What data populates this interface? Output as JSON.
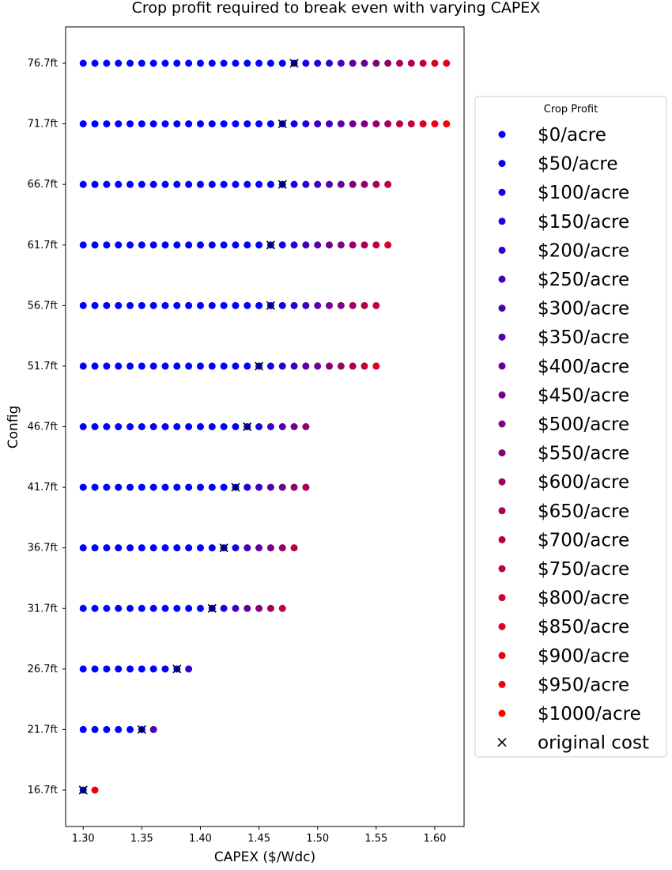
{
  "chart_data": {
    "type": "scatter",
    "title": "Crop profit required to break even with varying CAPEX",
    "xlabel": "CAPEX ($/Wdc)",
    "ylabel": "Config",
    "xlim": [
      1.285,
      1.625
    ],
    "x_ticks": [
      "1.30",
      "1.35",
      "1.40",
      "1.45",
      "1.50",
      "1.55",
      "1.60"
    ],
    "x_tick_values": [
      1.3,
      1.35,
      1.4,
      1.45,
      1.5,
      1.55,
      1.6
    ],
    "categories": [
      "16.7ft",
      "21.7ft",
      "26.7ft",
      "31.7ft",
      "36.7ft",
      "41.7ft",
      "46.7ft",
      "51.7ft",
      "56.7ft",
      "61.7ft",
      "66.7ft",
      "71.7ft",
      "76.7ft"
    ],
    "legend": {
      "title": "Crop Profit",
      "position": "right",
      "profit_labels": [
        "$0/acre",
        "$50/acre",
        "$100/acre",
        "$150/acre",
        "$200/acre",
        "$250/acre",
        "$300/acre",
        "$350/acre",
        "$400/acre",
        "$450/acre",
        "$500/acre",
        "$550/acre",
        "$600/acre",
        "$650/acre",
        "$700/acre",
        "$750/acre",
        "$800/acre",
        "$850/acre",
        "$900/acre",
        "$950/acre",
        "$1000/acre"
      ],
      "original_cost_label": "original cost"
    },
    "color_scale": {
      "low": "#0000ff",
      "high": "#ff0000"
    },
    "series": [
      {
        "config": "16.7ft",
        "original_cost": 1.3,
        "x": [
          1.3,
          1.31
        ]
      },
      {
        "config": "21.7ft",
        "original_cost": 1.35,
        "x": [
          1.3,
          1.31,
          1.32,
          1.33,
          1.34,
          1.35,
          1.36
        ]
      },
      {
        "config": "26.7ft",
        "original_cost": 1.38,
        "x": [
          1.3,
          1.31,
          1.32,
          1.33,
          1.34,
          1.35,
          1.36,
          1.37,
          1.38,
          1.39
        ]
      },
      {
        "config": "31.7ft",
        "original_cost": 1.41,
        "x": [
          1.3,
          1.31,
          1.32,
          1.33,
          1.34,
          1.35,
          1.36,
          1.37,
          1.38,
          1.39,
          1.4,
          1.41,
          1.42,
          1.43,
          1.44,
          1.45,
          1.46,
          1.47
        ]
      },
      {
        "config": "36.7ft",
        "original_cost": 1.42,
        "x": [
          1.3,
          1.31,
          1.32,
          1.33,
          1.34,
          1.35,
          1.36,
          1.37,
          1.38,
          1.39,
          1.4,
          1.41,
          1.42,
          1.43,
          1.44,
          1.45,
          1.46,
          1.47,
          1.48
        ]
      },
      {
        "config": "41.7ft",
        "original_cost": 1.43,
        "x": [
          1.3,
          1.31,
          1.32,
          1.33,
          1.34,
          1.35,
          1.36,
          1.37,
          1.38,
          1.39,
          1.4,
          1.41,
          1.42,
          1.43,
          1.44,
          1.45,
          1.46,
          1.47,
          1.48,
          1.49
        ]
      },
      {
        "config": "46.7ft",
        "original_cost": 1.44,
        "x": [
          1.3,
          1.31,
          1.32,
          1.33,
          1.34,
          1.35,
          1.36,
          1.37,
          1.38,
          1.39,
          1.4,
          1.41,
          1.42,
          1.43,
          1.44,
          1.45,
          1.46,
          1.47,
          1.48,
          1.49
        ]
      },
      {
        "config": "51.7ft",
        "original_cost": 1.45,
        "x": [
          1.3,
          1.31,
          1.32,
          1.33,
          1.34,
          1.35,
          1.36,
          1.37,
          1.38,
          1.39,
          1.4,
          1.41,
          1.42,
          1.43,
          1.44,
          1.45,
          1.46,
          1.47,
          1.48,
          1.49,
          1.5,
          1.51,
          1.52,
          1.53,
          1.54,
          1.55
        ]
      },
      {
        "config": "56.7ft",
        "original_cost": 1.46,
        "x": [
          1.3,
          1.31,
          1.32,
          1.33,
          1.34,
          1.35,
          1.36,
          1.37,
          1.38,
          1.39,
          1.4,
          1.41,
          1.42,
          1.43,
          1.44,
          1.45,
          1.46,
          1.47,
          1.48,
          1.49,
          1.5,
          1.51,
          1.52,
          1.53,
          1.54,
          1.55
        ]
      },
      {
        "config": "61.7ft",
        "original_cost": 1.46,
        "x": [
          1.3,
          1.31,
          1.32,
          1.33,
          1.34,
          1.35,
          1.36,
          1.37,
          1.38,
          1.39,
          1.4,
          1.41,
          1.42,
          1.43,
          1.44,
          1.45,
          1.46,
          1.47,
          1.48,
          1.49,
          1.5,
          1.51,
          1.52,
          1.53,
          1.54,
          1.55,
          1.56
        ]
      },
      {
        "config": "66.7ft",
        "original_cost": 1.47,
        "x": [
          1.3,
          1.31,
          1.32,
          1.33,
          1.34,
          1.35,
          1.36,
          1.37,
          1.38,
          1.39,
          1.4,
          1.41,
          1.42,
          1.43,
          1.44,
          1.45,
          1.46,
          1.47,
          1.48,
          1.49,
          1.5,
          1.51,
          1.52,
          1.53,
          1.54,
          1.55,
          1.56
        ]
      },
      {
        "config": "71.7ft",
        "original_cost": 1.47,
        "x": [
          1.3,
          1.31,
          1.32,
          1.33,
          1.34,
          1.35,
          1.36,
          1.37,
          1.38,
          1.39,
          1.4,
          1.41,
          1.42,
          1.43,
          1.44,
          1.45,
          1.46,
          1.47,
          1.48,
          1.49,
          1.5,
          1.51,
          1.52,
          1.53,
          1.54,
          1.55,
          1.56,
          1.57,
          1.58,
          1.59,
          1.6,
          1.61
        ]
      },
      {
        "config": "76.7ft",
        "original_cost": 1.48,
        "x": [
          1.3,
          1.31,
          1.32,
          1.33,
          1.34,
          1.35,
          1.36,
          1.37,
          1.38,
          1.39,
          1.4,
          1.41,
          1.42,
          1.43,
          1.44,
          1.45,
          1.46,
          1.47,
          1.48,
          1.49,
          1.5,
          1.51,
          1.52,
          1.53,
          1.54,
          1.55,
          1.56,
          1.57,
          1.58,
          1.59,
          1.6,
          1.61
        ]
      }
    ]
  }
}
